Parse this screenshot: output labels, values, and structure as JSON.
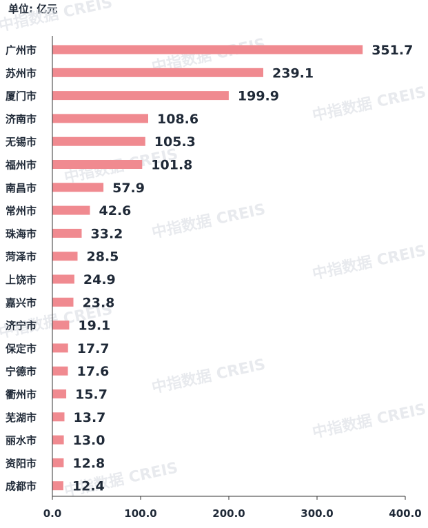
{
  "unit_label": "单位: 亿元",
  "watermark": "中指数据 CREIS",
  "chart_data": {
    "type": "bar",
    "orientation": "horizontal",
    "title": "",
    "unit": "亿元",
    "categories": [
      "广州市",
      "苏州市",
      "厦门市",
      "济南市",
      "无锡市",
      "福州市",
      "南昌市",
      "常州市",
      "珠海市",
      "菏泽市",
      "上饶市",
      "嘉兴市",
      "济宁市",
      "保定市",
      "宁德市",
      "衢州市",
      "芜湖市",
      "丽水市",
      "资阳市",
      "成都市"
    ],
    "values": [
      351.7,
      239.1,
      199.9,
      108.6,
      105.3,
      101.8,
      57.9,
      42.6,
      33.2,
      28.5,
      24.9,
      23.8,
      19.1,
      17.7,
      17.6,
      15.7,
      13.7,
      13.0,
      12.8,
      12.4
    ],
    "value_labels": [
      "351.7",
      "239.1",
      "199.9",
      "108.6",
      "105.3",
      "101.8",
      "57.9",
      "42.6",
      "33.2",
      "28.5",
      "24.9",
      "23.8",
      "19.1",
      "17.7",
      "17.6",
      "15.7",
      "13.7",
      "13.0",
      "12.8",
      "12.4"
    ],
    "xlim": [
      0,
      400
    ],
    "xticks": [
      "0.0",
      "100.0",
      "200.0",
      "300.0",
      "400.0"
    ],
    "xtick_values": [
      0,
      100,
      200,
      300,
      400
    ],
    "bar_color": "#f08a90",
    "grid": false,
    "legend": "none"
  }
}
